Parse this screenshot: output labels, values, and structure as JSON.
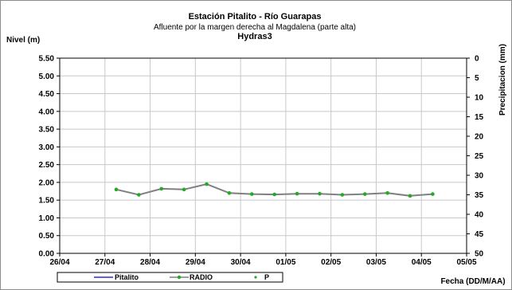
{
  "chart_data": {
    "type": "line",
    "title": "Estación Pitalito  - Río Guarapas",
    "subtitle": "Afluente por la margen derecha al Magdalena (parte alta)",
    "subtitle2": "Hydras3",
    "ylabel": "Nivel (m)",
    "y2label": "Precipitacion (mm)",
    "xlabel": "Fecha (DD/M/AA)",
    "ylim": [
      0,
      5.5
    ],
    "y2lim": [
      0,
      50
    ],
    "y2_inverted": true,
    "grid": true,
    "legend_position": "bottom",
    "x_ticks": [
      "26/04",
      "27/04",
      "28/04",
      "29/04",
      "30/04",
      "01/05",
      "02/05",
      "03/05",
      "04/05",
      "05/05"
    ],
    "y_ticks": [
      "0.00",
      "0.50",
      "1.00",
      "1.50",
      "2.00",
      "2.50",
      "3.00",
      "3.50",
      "4.00",
      "4.50",
      "5.00",
      "5.50"
    ],
    "y2_ticks": [
      "0",
      "5",
      "10",
      "15",
      "20",
      "25",
      "30",
      "35",
      "40",
      "45",
      "50"
    ],
    "series": [
      {
        "name": "Pitalito",
        "color": "#0000cc",
        "x": [],
        "y": []
      },
      {
        "name": "RADIO",
        "color": "#808080",
        "marker_color": "#22aa22",
        "x": [
          1.25,
          1.75,
          2.25,
          2.75,
          3.25,
          3.75,
          4.25,
          4.75,
          5.25,
          5.75,
          6.25,
          6.75,
          7.25,
          7.75,
          8.25
        ],
        "y": [
          1.8,
          1.65,
          1.82,
          1.8,
          1.95,
          1.7,
          1.67,
          1.66,
          1.68,
          1.68,
          1.65,
          1.67,
          1.7,
          1.62,
          1.67
        ]
      },
      {
        "name": "P",
        "color": "#22aa22",
        "x": [],
        "y": []
      }
    ]
  }
}
